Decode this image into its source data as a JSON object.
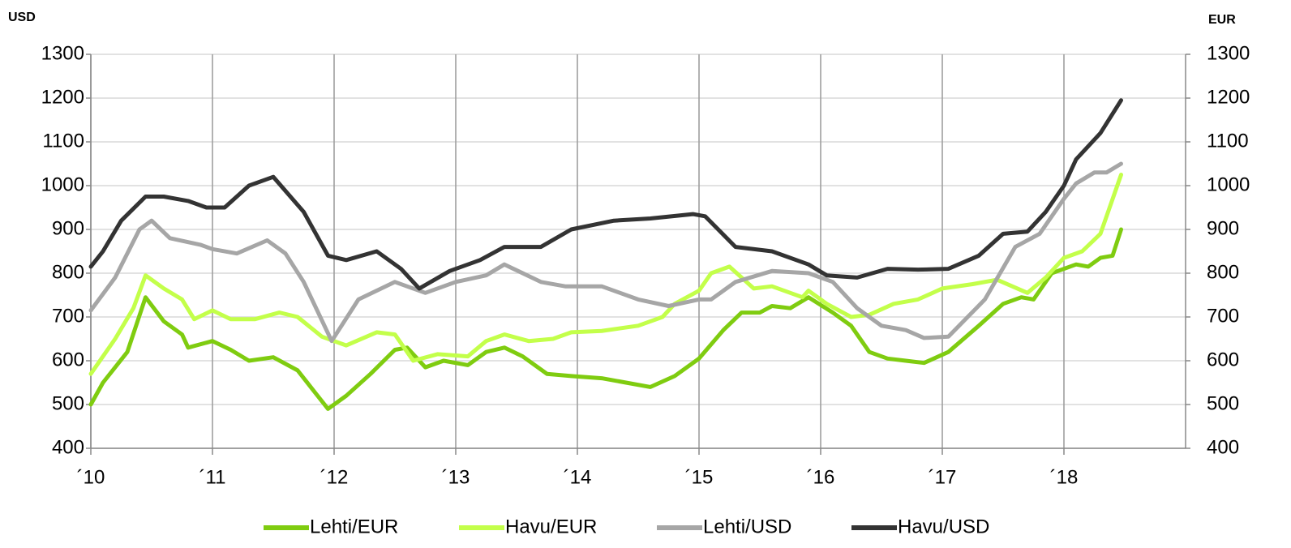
{
  "chart_data": {
    "type": "line",
    "y_label": "USD",
    "y2_label": "EUR",
    "xlim": [
      2010,
      2019
    ],
    "xticks": [
      {
        "value": 2010,
        "label": "´10"
      },
      {
        "value": 2011,
        "label": "´11"
      },
      {
        "value": 2012,
        "label": "´12"
      },
      {
        "value": 2013,
        "label": "´13"
      },
      {
        "value": 2014,
        "label": "´14"
      },
      {
        "value": 2015,
        "label": "´15"
      },
      {
        "value": 2016,
        "label": "´16"
      },
      {
        "value": 2017,
        "label": "´17"
      },
      {
        "value": 2018,
        "label": "´18"
      }
    ],
    "ylim": [
      400,
      1300
    ],
    "yticks": [
      400,
      500,
      600,
      700,
      800,
      900,
      1000,
      1100,
      1200,
      1300
    ],
    "y2lim": [
      400,
      1300
    ],
    "y2ticks": [
      400,
      500,
      600,
      700,
      800,
      900,
      1000,
      1100,
      1200,
      1300
    ],
    "grid": true,
    "legend": "bottom",
    "series": [
      {
        "name": "Lehti/EUR",
        "color": "#7fcc10",
        "axis": "y2",
        "x": [
          2010,
          2010.1,
          2010.3,
          2010.45,
          2010.6,
          2010.75,
          2010.8,
          2011.0,
          2011.15,
          2011.3,
          2011.5,
          2011.7,
          2011.85,
          2011.95,
          2012.1,
          2012.3,
          2012.5,
          2012.6,
          2012.75,
          2012.9,
          2013.1,
          2013.25,
          2013.4,
          2013.55,
          2013.75,
          2013.95,
          2014.2,
          2014.4,
          2014.6,
          2014.8,
          2015.0,
          2015.2,
          2015.35,
          2015.5,
          2015.6,
          2015.75,
          2015.9,
          2016.1,
          2016.25,
          2016.4,
          2016.55,
          2016.7,
          2016.85,
          2017.05,
          2017.3,
          2017.5,
          2017.65,
          2017.75,
          2017.9,
          2018.1,
          2018.2,
          2018.3,
          2018.4,
          2018.47
        ],
        "values": [
          500,
          550,
          620,
          745,
          690,
          660,
          630,
          645,
          625,
          600,
          608,
          578,
          525,
          490,
          520,
          570,
          625,
          630,
          585,
          600,
          590,
          620,
          630,
          610,
          570,
          565,
          560,
          550,
          540,
          565,
          605,
          670,
          710,
          710,
          725,
          720,
          745,
          710,
          680,
          620,
          605,
          600,
          595,
          620,
          680,
          730,
          745,
          740,
          800,
          820,
          815,
          835,
          840,
          900
        ]
      },
      {
        "name": "Havu/EUR",
        "color": "#c3ff4a",
        "axis": "y2",
        "x": [
          2010,
          2010.2,
          2010.35,
          2010.45,
          2010.6,
          2010.75,
          2010.85,
          2011.0,
          2011.15,
          2011.35,
          2011.55,
          2011.7,
          2011.9,
          2012.1,
          2012.35,
          2012.5,
          2012.65,
          2012.85,
          2013.1,
          2013.25,
          2013.4,
          2013.6,
          2013.8,
          2013.95,
          2014.2,
          2014.5,
          2014.7,
          2014.8,
          2015.0,
          2015.1,
          2015.25,
          2015.45,
          2015.6,
          2015.85,
          2015.9,
          2016.05,
          2016.25,
          2016.4,
          2016.6,
          2016.8,
          2017.0,
          2017.25,
          2017.45,
          2017.7,
          2017.85,
          2018.0,
          2018.15,
          2018.3,
          2018.47
        ],
        "values": [
          570,
          650,
          720,
          795,
          765,
          740,
          695,
          715,
          695,
          695,
          710,
          700,
          655,
          635,
          665,
          660,
          600,
          615,
          610,
          645,
          660,
          645,
          650,
          665,
          668,
          680,
          700,
          730,
          760,
          800,
          815,
          765,
          770,
          745,
          760,
          730,
          700,
          705,
          730,
          740,
          765,
          775,
          785,
          755,
          790,
          835,
          850,
          890,
          1025
        ]
      },
      {
        "name": "Lehti/USD",
        "color": "#a6a6a6",
        "axis": "y",
        "x": [
          2010,
          2010.2,
          2010.4,
          2010.5,
          2010.65,
          2010.9,
          2011.0,
          2011.2,
          2011.45,
          2011.6,
          2011.75,
          2011.98,
          2012.2,
          2012.5,
          2012.75,
          2013.0,
          2013.25,
          2013.4,
          2013.7,
          2013.9,
          2014.2,
          2014.5,
          2014.75,
          2015.0,
          2015.1,
          2015.3,
          2015.6,
          2015.9,
          2016.1,
          2016.3,
          2016.5,
          2016.7,
          2016.85,
          2017.05,
          2017.35,
          2017.6,
          2017.8,
          2018.0,
          2018.1,
          2018.25,
          2018.35,
          2018.47
        ],
        "values": [
          715,
          790,
          900,
          920,
          880,
          865,
          855,
          845,
          875,
          845,
          780,
          645,
          740,
          780,
          755,
          780,
          795,
          820,
          780,
          770,
          770,
          740,
          725,
          740,
          740,
          780,
          805,
          800,
          780,
          720,
          680,
          670,
          652,
          655,
          740,
          860,
          890,
          970,
          1005,
          1030,
          1030,
          1050
        ]
      },
      {
        "name": "Havu/USD",
        "color": "#333333",
        "axis": "y",
        "x": [
          2010,
          2010.1,
          2010.25,
          2010.45,
          2010.6,
          2010.8,
          2010.95,
          2011.1,
          2011.3,
          2011.5,
          2011.75,
          2011.95,
          2012.1,
          2012.35,
          2012.55,
          2012.7,
          2012.95,
          2013.2,
          2013.4,
          2013.7,
          2013.95,
          2014.3,
          2014.6,
          2014.95,
          2015.05,
          2015.3,
          2015.6,
          2015.9,
          2016.05,
          2016.3,
          2016.55,
          2016.8,
          2017.05,
          2017.3,
          2017.5,
          2017.7,
          2017.85,
          2018.0,
          2018.1,
          2018.3,
          2018.47
        ],
        "values": [
          815,
          850,
          920,
          975,
          975,
          965,
          950,
          950,
          1000,
          1020,
          940,
          840,
          830,
          850,
          810,
          765,
          805,
          830,
          860,
          860,
          900,
          920,
          925,
          935,
          930,
          860,
          850,
          820,
          795,
          790,
          810,
          808,
          810,
          840,
          890,
          895,
          940,
          1000,
          1060,
          1120,
          1195
        ]
      }
    ]
  }
}
